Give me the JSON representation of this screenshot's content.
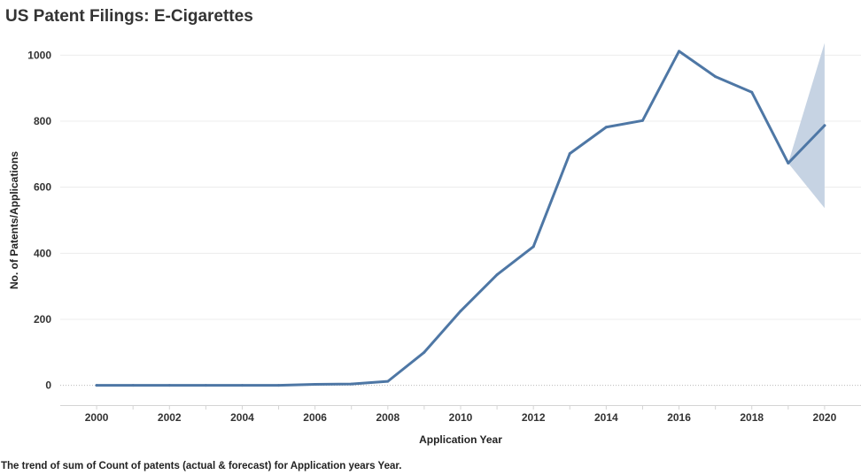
{
  "title": "US Patent Filings: E-Cigarettes",
  "caption": "The trend of sum of Count of patents (actual & forecast)  for Application years Year.",
  "colors": {
    "line": "#4e77a5",
    "band": "#c6d3e3",
    "grid": "#ececec"
  },
  "chart_data": {
    "type": "line",
    "title": "US Patent Filings: E-Cigarettes",
    "xlabel": "Application Year",
    "ylabel": "No. of Patents/Applications",
    "xlim": [
      1999,
      2021
    ],
    "ylim": [
      -60,
      1060
    ],
    "x_ticks": [
      "2000",
      "2002",
      "2004",
      "2006",
      "2008",
      "2010",
      "2012",
      "2014",
      "2016",
      "2018",
      "2020"
    ],
    "y_ticks": [
      "0",
      "200",
      "400",
      "600",
      "800",
      "1000"
    ],
    "grid": true,
    "series": [
      {
        "x": [
          2000,
          2001,
          2002,
          2003,
          2004,
          2005,
          2006,
          2007,
          2008,
          2009,
          2010,
          2011,
          2012,
          2013,
          2014,
          2015,
          2016,
          2017,
          2018,
          2019,
          2020
        ],
        "values": [
          0,
          0,
          0,
          0,
          0,
          0,
          3,
          4,
          12,
          100,
          225,
          335,
          420,
          702,
          782,
          802,
          1012,
          935,
          888,
          673,
          787
        ]
      }
    ],
    "forecast_band": {
      "x": [
        2019,
        2020
      ],
      "upper": [
        673,
        1037
      ],
      "lower": [
        673,
        537
      ]
    }
  }
}
